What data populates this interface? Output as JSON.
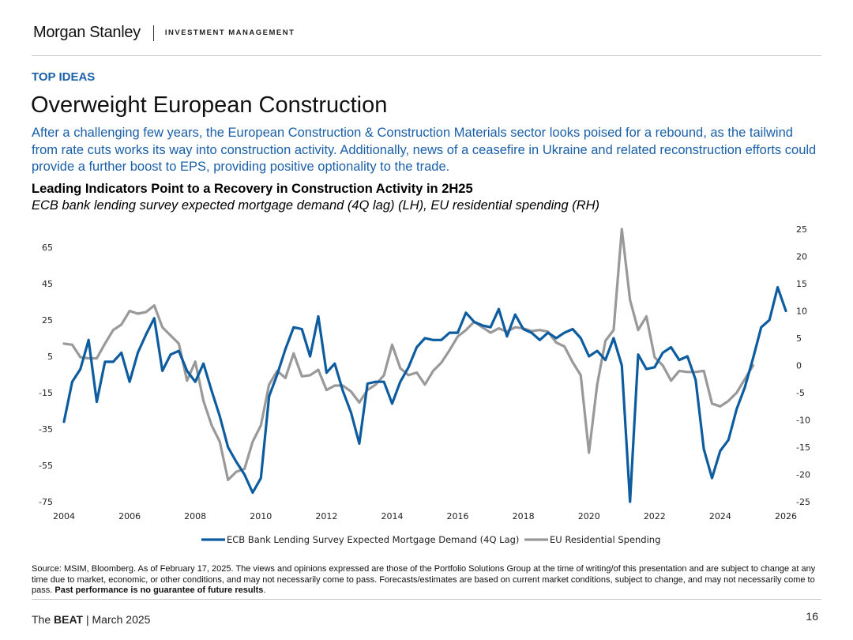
{
  "header": {
    "brand": "Morgan Stanley",
    "division": "INVESTMENT MANAGEMENT"
  },
  "section_label": "TOP IDEAS",
  "title": "Overweight European Construction",
  "intro": "After a challenging few years, the European Construction & Construction Materials sector looks poised for a rebound, as the tailwind from rate cuts works its way into construction activity. Additionally, news of a ceasefire in Ukraine and related reconstruction efforts could provide a further boost to EPS, providing positive optionality to the trade.",
  "chart_data": {
    "type": "line",
    "title": "Leading Indicators Point to a Recovery in Construction Activity in 2H25",
    "subtitle": "ECB bank lending survey expected mortgage demand (4Q lag) (LH), EU residential spending (RH)",
    "x_ticks": [
      "2004",
      "2006",
      "2008",
      "2010",
      "2012",
      "2014",
      "2016",
      "2018",
      "2020",
      "2022",
      "2024",
      "2026"
    ],
    "xlim": [
      2004,
      2026
    ],
    "left_axis": {
      "ylim": [
        -75,
        75
      ],
      "ticks": [
        "65",
        "45",
        "25",
        "5",
        "-15",
        "-35",
        "-55",
        "-75"
      ]
    },
    "right_axis": {
      "ylim": [
        -25,
        25
      ],
      "ticks": [
        "25",
        "20",
        "15",
        "10",
        "5",
        "0",
        "-5",
        "-10",
        "-15",
        "-20",
        "-25"
      ]
    },
    "series": [
      {
        "name": "ECB Bank Lending Survey Expected Mortgage Demand (4Q Lag)",
        "axis": "left",
        "color": "#0d5ca0",
        "x": [
          2004.0,
          2004.25,
          2004.5,
          2004.75,
          2005.0,
          2005.25,
          2005.5,
          2005.75,
          2006.0,
          2006.25,
          2006.5,
          2006.75,
          2007.0,
          2007.25,
          2007.5,
          2007.75,
          2008.0,
          2008.25,
          2008.5,
          2008.75,
          2009.0,
          2009.25,
          2009.5,
          2009.75,
          2010.0,
          2010.25,
          2010.5,
          2010.75,
          2011.0,
          2011.25,
          2011.5,
          2011.75,
          2012.0,
          2012.25,
          2012.5,
          2012.75,
          2013.0,
          2013.25,
          2013.5,
          2013.75,
          2014.0,
          2014.25,
          2014.5,
          2014.75,
          2015.0,
          2015.25,
          2015.5,
          2015.75,
          2016.0,
          2016.25,
          2016.5,
          2016.75,
          2017.0,
          2017.25,
          2017.5,
          2017.75,
          2018.0,
          2018.25,
          2018.5,
          2018.75,
          2019.0,
          2019.25,
          2019.5,
          2019.75,
          2020.0,
          2020.25,
          2020.5,
          2020.75,
          2021.0,
          2021.25,
          2021.5,
          2021.75,
          2022.0,
          2022.25,
          2022.5,
          2022.75,
          2023.0,
          2023.25,
          2023.5,
          2023.75,
          2024.0,
          2024.25,
          2024.5,
          2024.75,
          2025.0,
          2025.25,
          2025.5,
          2025.75,
          2026.0
        ],
        "values": [
          -31,
          -9,
          -2,
          14,
          -20,
          2,
          2,
          7,
          -9,
          7,
          17,
          26,
          -3,
          6,
          8,
          -3,
          -9,
          1,
          -14,
          -28,
          -45,
          -53,
          -60,
          -70,
          -62,
          -17,
          -5,
          9,
          21,
          20,
          5,
          27,
          -4,
          1,
          -14,
          -26,
          -43,
          -10,
          -9,
          -9,
          -21,
          -9,
          -1,
          10,
          15,
          14,
          14,
          18,
          18,
          29,
          24,
          22,
          21,
          31,
          16,
          28,
          20,
          18,
          14,
          18,
          15,
          18,
          20,
          15,
          5,
          8,
          3,
          15,
          0,
          -75,
          6,
          -2,
          -1,
          7,
          10,
          3,
          5,
          -8,
          -46,
          -62,
          -47,
          -41,
          -24,
          -12,
          4,
          21,
          25,
          43,
          30
        ]
      },
      {
        "name": "EU Residential Spending",
        "axis": "right",
        "color": "#999999",
        "x": [
          2004.0,
          2004.25,
          2004.5,
          2004.75,
          2005.0,
          2005.25,
          2005.5,
          2005.75,
          2006.0,
          2006.25,
          2006.5,
          2006.75,
          2007.0,
          2007.25,
          2007.5,
          2007.75,
          2008.0,
          2008.25,
          2008.5,
          2008.75,
          2009.0,
          2009.25,
          2009.5,
          2009.75,
          2010.0,
          2010.25,
          2010.5,
          2010.75,
          2011.0,
          2011.25,
          2011.5,
          2011.75,
          2012.0,
          2012.25,
          2012.5,
          2012.75,
          2013.0,
          2013.25,
          2013.5,
          2013.75,
          2014.0,
          2014.25,
          2014.5,
          2014.75,
          2015.0,
          2015.25,
          2015.5,
          2015.75,
          2016.0,
          2016.25,
          2016.5,
          2016.75,
          2017.0,
          2017.25,
          2017.5,
          2017.75,
          2018.0,
          2018.25,
          2018.5,
          2018.75,
          2019.0,
          2019.25,
          2019.5,
          2019.75,
          2020.0,
          2020.25,
          2020.5,
          2020.75,
          2021.0,
          2021.25,
          2021.5,
          2021.75,
          2022.0,
          2022.25,
          2022.5,
          2022.75,
          2023.0,
          2023.25,
          2023.5,
          2023.75,
          2024.0,
          2024.25,
          2024.5,
          2024.75,
          2025.0
        ],
        "values": [
          4,
          3.8,
          1.5,
          1.3,
          1.3,
          4,
          6.5,
          7.5,
          10,
          9.5,
          9.8,
          11,
          7,
          5.5,
          4,
          -2.8,
          0.7,
          -6.5,
          -11,
          -14,
          -21,
          -19.5,
          -19,
          -14,
          -11,
          -3.5,
          -1,
          -2.3,
          2.2,
          -2,
          -1.8,
          -0.8,
          -4.5,
          -3.7,
          -3.7,
          -4.8,
          -6.8,
          -4.5,
          -3.5,
          -1.8,
          3.8,
          -0.5,
          -1.8,
          -1.3,
          -3.5,
          -1,
          0.5,
          2.8,
          5.3,
          6.5,
          8,
          7,
          6,
          6.8,
          6.2,
          7,
          6.8,
          6.3,
          6.5,
          6.2,
          4.2,
          3.5,
          0.6,
          -1.8,
          -16,
          -3.5,
          4.5,
          6.5,
          25,
          12,
          6.5,
          9,
          1.5,
          0,
          -2.8,
          -1,
          -1.2,
          -1.2,
          -1,
          -7,
          -7.5,
          -6.5,
          -5,
          -2.5,
          0
        ]
      }
    ],
    "legend_position": "bottom-center"
  },
  "source": {
    "text": "Source: MSIM, Bloomberg. As of February 17, 2025. The views and opinions expressed are those of the Portfolio Solutions Group at the time of writing/of this presentation and are subject to change at any time due to market, economic, or other conditions, and may not necessarily come to pass. Forecasts/estimates are based on current market conditions, subject to change, and may not necessarily come to pass. ",
    "bold": "Past performance is no guarantee of future results",
    "end": "."
  },
  "footer": {
    "prefix": "The ",
    "bold": "BEAT",
    "suffix": " | March 2025",
    "page_number": "16"
  }
}
